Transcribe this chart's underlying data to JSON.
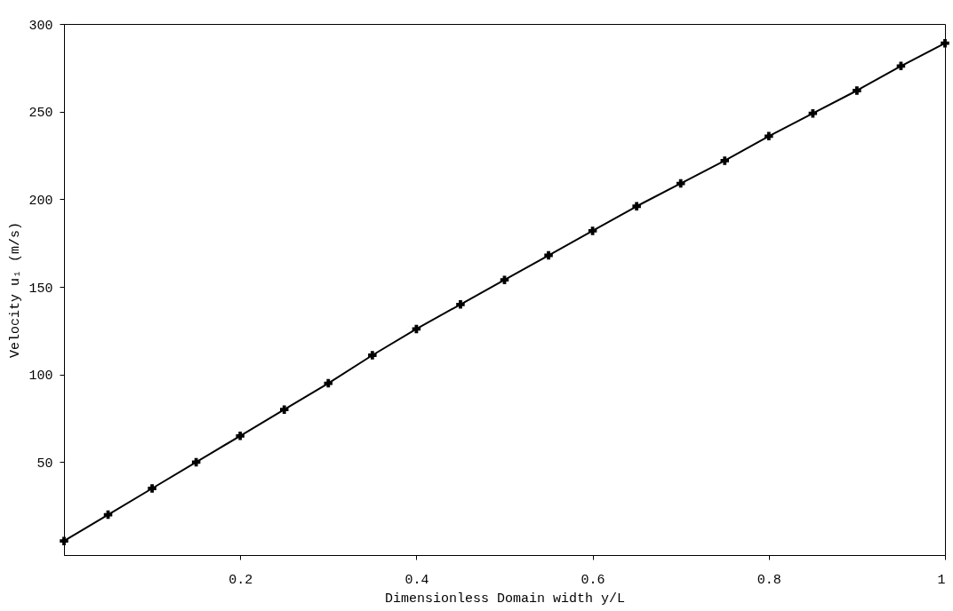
{
  "chart_data": {
    "type": "line",
    "xlabel": "Dimensionless Domain width y/L",
    "ylabel": "Velocity u₁ (m/s)",
    "x": [
      0,
      0.05,
      0.1,
      0.15,
      0.2,
      0.25,
      0.3,
      0.35,
      0.4,
      0.45,
      0.5,
      0.55,
      0.6,
      0.65,
      0.7,
      0.75,
      0.8,
      0.85,
      0.9,
      0.95,
      1
    ],
    "series": [
      {
        "color": "#000000",
        "values": [
          5,
          20,
          35,
          50,
          65,
          80,
          95,
          111,
          126,
          140,
          154,
          168,
          182,
          196,
          209,
          222,
          236,
          249,
          262,
          276,
          289
        ]
      }
    ],
    "xlim": [
      0,
      1
    ],
    "ylim": [
      -3,
      300
    ],
    "xticks": [
      0.2,
      0.4,
      0.6,
      0.8,
      1
    ],
    "yticks": [
      50,
      100,
      150,
      200,
      250,
      300
    ],
    "marker": "cross",
    "line_style": "solid"
  }
}
